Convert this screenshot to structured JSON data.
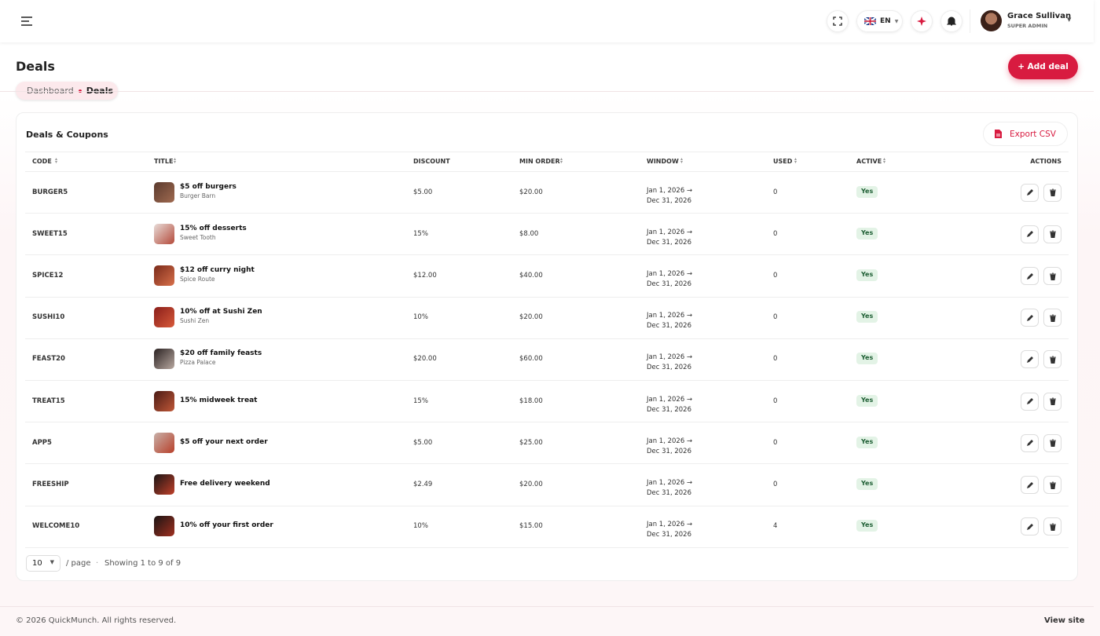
{
  "header": {
    "language": "EN",
    "user": {
      "name": "Grace Sullivan",
      "role": "SUPER ADMIN"
    }
  },
  "page": {
    "title": "Deals",
    "breadcrumb": [
      "Dashboard",
      "Deals"
    ],
    "add_button": "+ Add deal"
  },
  "card": {
    "title": "Deals & Coupons",
    "export_button": "Export CSV"
  },
  "table": {
    "columns": [
      "CODE",
      "TITLE",
      "DISCOUNT",
      "MIN ORDER",
      "WINDOW",
      "USED",
      "ACTIVE",
      "ACTIONS"
    ],
    "rows": [
      {
        "code": "BURGER5",
        "title": "$5 off burgers",
        "vendor": "Burger Barn",
        "discount": "$5.00",
        "min_order": "$20.00",
        "window_start": "Jan 1, 2026 →",
        "window_end": "Dec 31, 2026",
        "used": "0",
        "active": "Yes"
      },
      {
        "code": "SWEET15",
        "title": "15% off desserts",
        "vendor": "Sweet Tooth",
        "discount": "15%",
        "min_order": "$8.00",
        "window_start": "Jan 1, 2026 →",
        "window_end": "Dec 31, 2026",
        "used": "0",
        "active": "Yes"
      },
      {
        "code": "SPICE12",
        "title": "$12 off curry night",
        "vendor": "Spice Route",
        "discount": "$12.00",
        "min_order": "$40.00",
        "window_start": "Jan 1, 2026 →",
        "window_end": "Dec 31, 2026",
        "used": "0",
        "active": "Yes"
      },
      {
        "code": "SUSHI10",
        "title": "10% off at Sushi Zen",
        "vendor": "Sushi Zen",
        "discount": "10%",
        "min_order": "$20.00",
        "window_start": "Jan 1, 2026 →",
        "window_end": "Dec 31, 2026",
        "used": "0",
        "active": "Yes"
      },
      {
        "code": "FEAST20",
        "title": "$20 off family feasts",
        "vendor": "Pizza Palace",
        "discount": "$20.00",
        "min_order": "$60.00",
        "window_start": "Jan 1, 2026 →",
        "window_end": "Dec 31, 2026",
        "used": "0",
        "active": "Yes"
      },
      {
        "code": "TREAT15",
        "title": "15% midweek treat",
        "discount": "15%",
        "min_order": "$18.00",
        "window_start": "Jan 1, 2026 →",
        "window_end": "Dec 31, 2026",
        "used": "0",
        "active": "Yes"
      },
      {
        "code": "APP5",
        "title": "$5 off your next order",
        "discount": "$5.00",
        "min_order": "$25.00",
        "window_start": "Jan 1, 2026 →",
        "window_end": "Dec 31, 2026",
        "used": "0",
        "active": "Yes"
      },
      {
        "code": "FREESHIP",
        "title": "Free delivery weekend",
        "discount": "$2.49",
        "min_order": "$20.00",
        "window_start": "Jan 1, 2026 →",
        "window_end": "Dec 31, 2026",
        "used": "0",
        "active": "Yes"
      },
      {
        "code": "WELCOME10",
        "title": "10% off your first order",
        "discount": "10%",
        "min_order": "$15.00",
        "window_start": "Jan 1, 2026 →",
        "window_end": "Dec 31, 2026",
        "used": "4",
        "active": "Yes"
      }
    ]
  },
  "pagination": {
    "page_size": "10",
    "per_page_label": "/ page",
    "summary": "Showing 1 to 9 of 9"
  },
  "footer": {
    "copyright": "© 2026 QuickMunch. All rights reserved.",
    "link": "View site"
  }
}
